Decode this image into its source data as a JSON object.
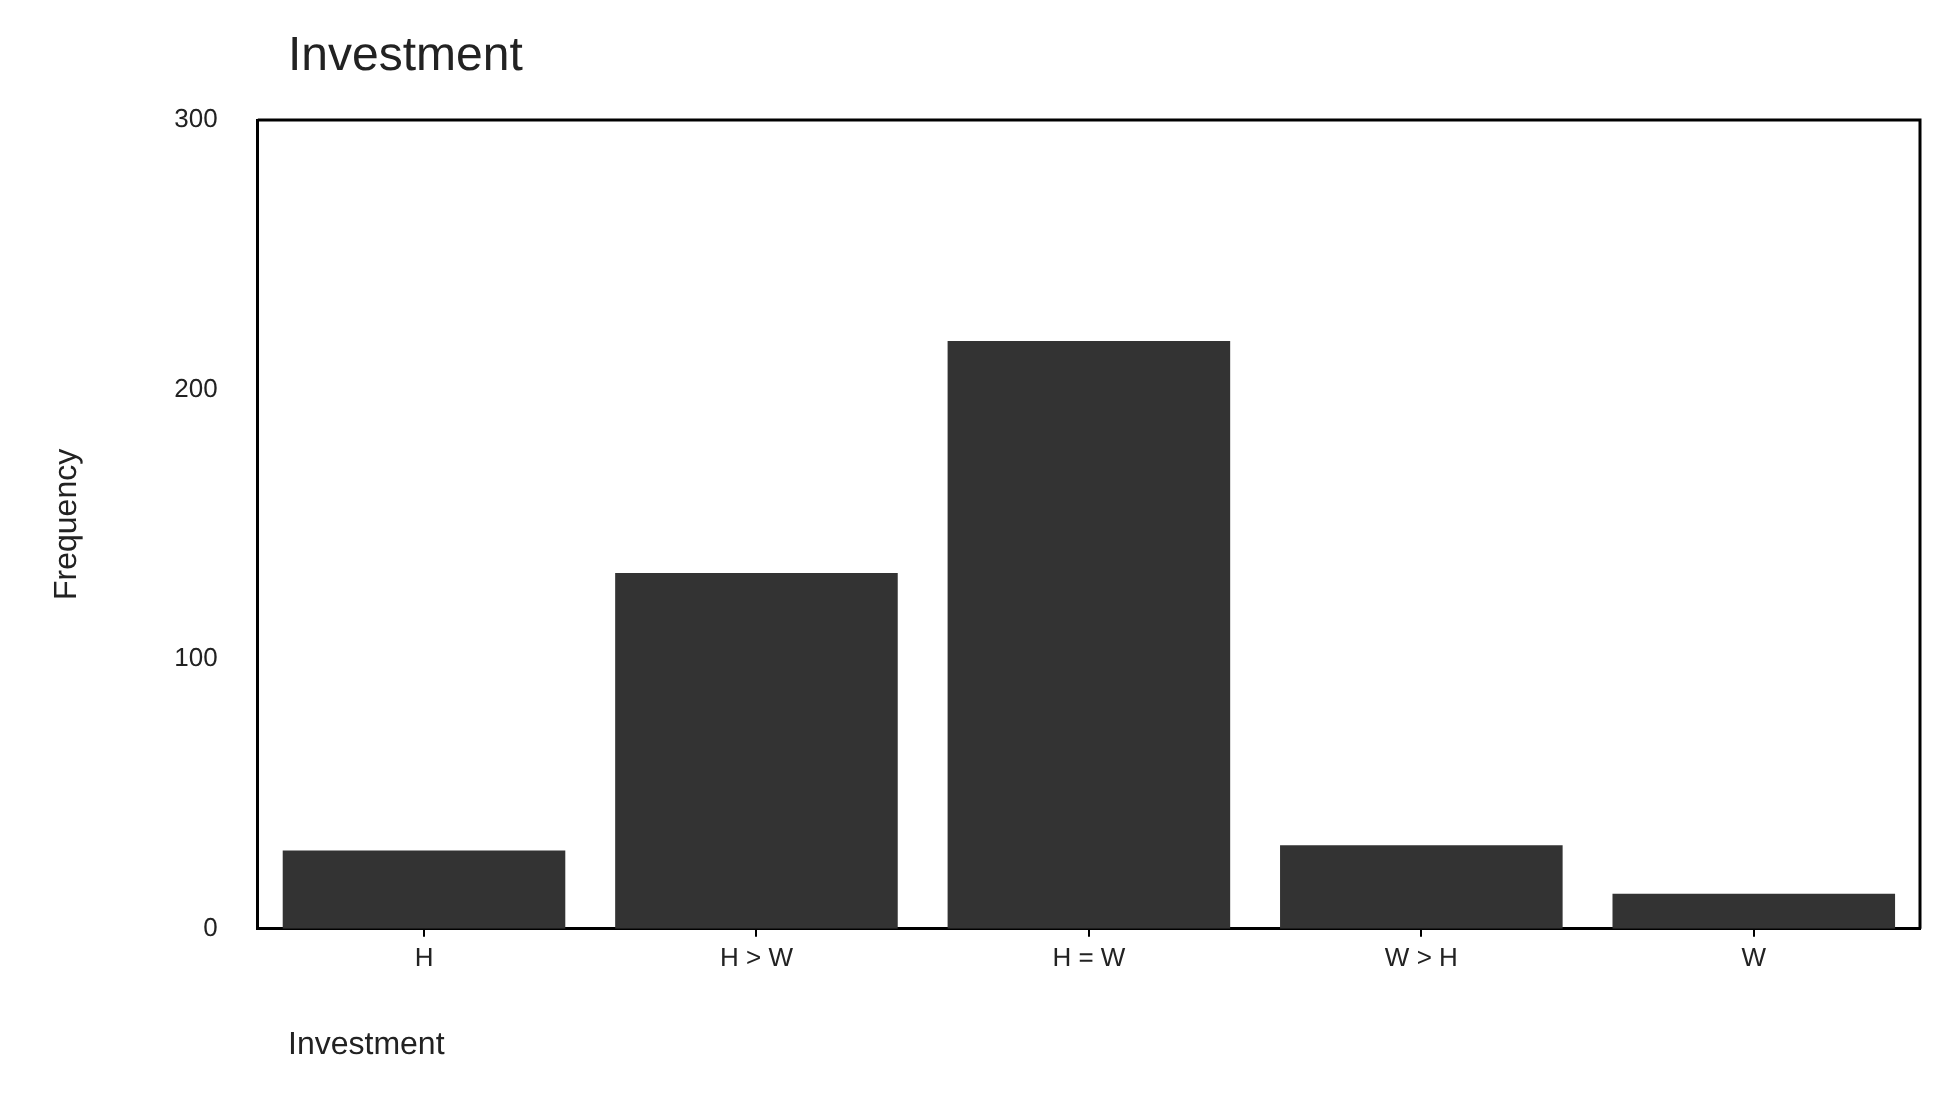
{
  "chart_data": {
    "type": "bar",
    "title": "Investment",
    "xlabel": "Investment",
    "ylabel": "Frequency",
    "categories": [
      "H",
      "H > W",
      "H = W",
      "W > H",
      "W"
    ],
    "values": [
      29,
      132,
      218,
      31,
      13
    ],
    "color": "#333333",
    "ylim": [
      0,
      300
    ],
    "yticks": [
      0,
      100,
      200,
      300
    ],
    "grid": false,
    "legend": false
  }
}
